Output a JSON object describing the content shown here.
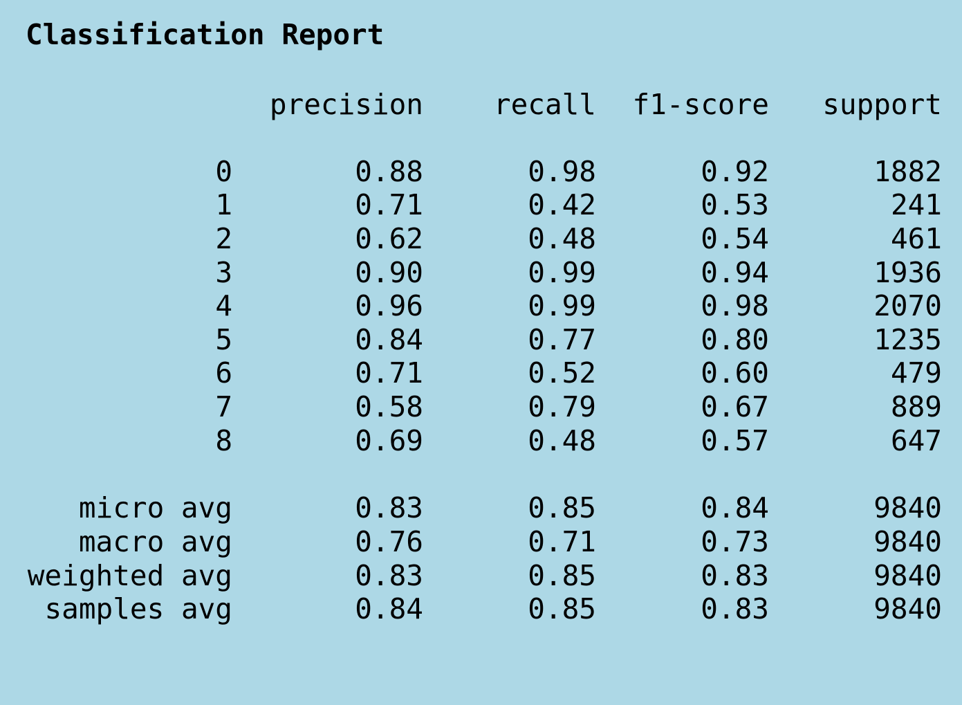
{
  "title": "Classification Report",
  "headers": {
    "precision": "precision",
    "recall": "recall",
    "f1": "f1-score",
    "support": "support"
  },
  "rows": [
    {
      "label": "0",
      "precision": "0.88",
      "recall": "0.98",
      "f1": "0.92",
      "support": "1882"
    },
    {
      "label": "1",
      "precision": "0.71",
      "recall": "0.42",
      "f1": "0.53",
      "support": "241"
    },
    {
      "label": "2",
      "precision": "0.62",
      "recall": "0.48",
      "f1": "0.54",
      "support": "461"
    },
    {
      "label": "3",
      "precision": "0.90",
      "recall": "0.99",
      "f1": "0.94",
      "support": "1936"
    },
    {
      "label": "4",
      "precision": "0.96",
      "recall": "0.99",
      "f1": "0.98",
      "support": "2070"
    },
    {
      "label": "5",
      "precision": "0.84",
      "recall": "0.77",
      "f1": "0.80",
      "support": "1235"
    },
    {
      "label": "6",
      "precision": "0.71",
      "recall": "0.52",
      "f1": "0.60",
      "support": "479"
    },
    {
      "label": "7",
      "precision": "0.58",
      "recall": "0.79",
      "f1": "0.67",
      "support": "889"
    },
    {
      "label": "8",
      "precision": "0.69",
      "recall": "0.48",
      "f1": "0.57",
      "support": "647"
    }
  ],
  "averages": [
    {
      "label": "micro avg",
      "precision": "0.83",
      "recall": "0.85",
      "f1": "0.84",
      "support": "9840"
    },
    {
      "label": "macro avg",
      "precision": "0.76",
      "recall": "0.71",
      "f1": "0.73",
      "support": "9840"
    },
    {
      "label": "weighted avg",
      "precision": "0.83",
      "recall": "0.85",
      "f1": "0.83",
      "support": "9840"
    },
    {
      "label": "samples avg",
      "precision": "0.84",
      "recall": "0.85",
      "f1": "0.83",
      "support": "9840"
    }
  ]
}
